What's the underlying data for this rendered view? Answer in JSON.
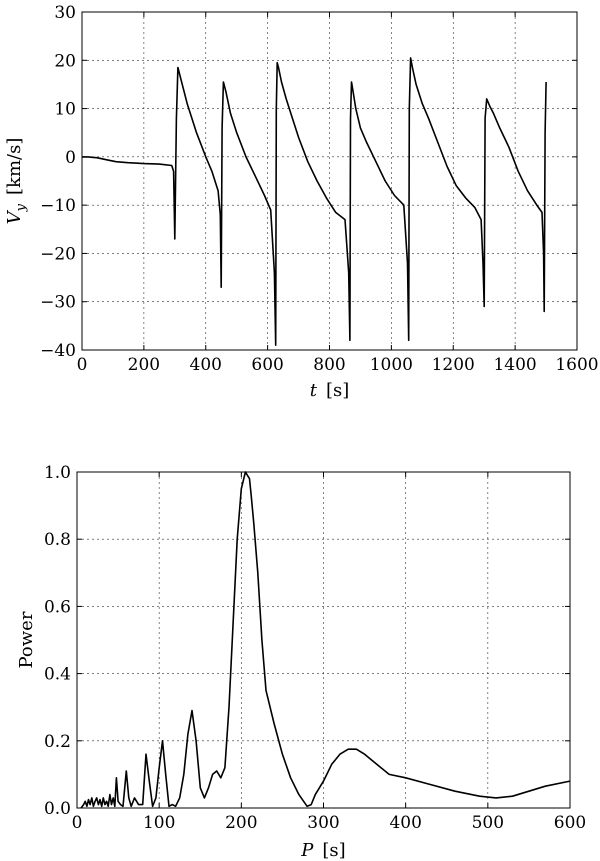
{
  "chart_data": [
    {
      "type": "line",
      "xlabel": "t  [s]",
      "ylabel": "V_y  [km/s]",
      "xlim": [
        0,
        1600
      ],
      "ylim": [
        -40,
        30
      ],
      "xticks": [
        0,
        200,
        400,
        600,
        800,
        1000,
        1200,
        1400,
        1600
      ],
      "yticks": [
        -40,
        -30,
        -20,
        -10,
        0,
        10,
        20,
        30
      ],
      "xtick_labels": [
        "0",
        "200",
        "400",
        "600",
        "800",
        "1000",
        "1200",
        "1400",
        "1600"
      ],
      "ytick_labels": [
        "−40",
        "−30",
        "−20",
        "−10",
        "0",
        "10",
        "20",
        "30"
      ],
      "grid": true,
      "series": [
        {
          "x": [
            0,
            20,
            50,
            80,
            110,
            150,
            200,
            250,
            290,
            296,
            300,
            305,
            310,
            320,
            340,
            370,
            400,
            420,
            440,
            447,
            450,
            453,
            457,
            465,
            480,
            500,
            530,
            560,
            590,
            610,
            622,
            626,
            628,
            631,
            635,
            645,
            660,
            680,
            700,
            730,
            760,
            790,
            820,
            850,
            862,
            866,
            868,
            871,
            875,
            885,
            900,
            920,
            950,
            980,
            1010,
            1040,
            1052,
            1056,
            1058,
            1062,
            1068,
            1080,
            1100,
            1120,
            1150,
            1180,
            1210,
            1240,
            1270,
            1290,
            1296,
            1300,
            1303,
            1308,
            1318,
            1330,
            1350,
            1380,
            1410,
            1440,
            1470,
            1487,
            1492,
            1494,
            1497,
            1500
          ],
          "y": [
            0,
            0,
            -0.2,
            -0.6,
            -1.0,
            -1.2,
            -1.4,
            -1.5,
            -1.8,
            -3,
            -17,
            8,
            18.5,
            16,
            11,
            5,
            0,
            -3,
            -7,
            -12,
            -27,
            6,
            15.5,
            13.5,
            9,
            5,
            0,
            -4,
            -8,
            -11,
            -24,
            -39,
            10,
            19.5,
            18.5,
            15.5,
            12,
            8,
            4,
            -1,
            -5,
            -8.5,
            -11.5,
            -13,
            -24,
            -38,
            8,
            15.5,
            14,
            10,
            6,
            3,
            -1,
            -5,
            -8,
            -10,
            -22,
            -38,
            10,
            20.5,
            18.5,
            15,
            11,
            8,
            3,
            -2,
            -6,
            -8.5,
            -10.5,
            -13,
            -22,
            -31,
            8,
            12,
            10.5,
            9,
            6,
            2,
            -3,
            -7,
            -10,
            -11.5,
            -20,
            -32,
            5,
            15.5
          ]
        }
      ]
    },
    {
      "type": "line",
      "xlabel": "P  [s]",
      "ylabel": "Power",
      "xlim": [
        0,
        600
      ],
      "ylim": [
        0,
        1.0
      ],
      "xticks": [
        0,
        100,
        200,
        300,
        400,
        500,
        600
      ],
      "yticks": [
        0.0,
        0.2,
        0.4,
        0.6,
        0.8,
        1.0
      ],
      "xtick_labels": [
        "0",
        "100",
        "200",
        "300",
        "400",
        "500",
        "600"
      ],
      "ytick_labels": [
        "0.0",
        "0.2",
        "0.4",
        "0.6",
        "0.8",
        "1.0"
      ],
      "grid": true,
      "series": [
        {
          "x": [
            5,
            8,
            10,
            12,
            14,
            16,
            18,
            20,
            22,
            24,
            26,
            28,
            30,
            32,
            34,
            36,
            38,
            40,
            42,
            44,
            46,
            48,
            50,
            53,
            56,
            60,
            63,
            66,
            70,
            75,
            80,
            84,
            88,
            92,
            96,
            100,
            104,
            108,
            112,
            116,
            120,
            125,
            130,
            135,
            140,
            145,
            150,
            155,
            160,
            165,
            170,
            175,
            180,
            185,
            190,
            195,
            200,
            205,
            210,
            212,
            215,
            220,
            225,
            230,
            240,
            250,
            260,
            270,
            280,
            285,
            290,
            300,
            310,
            320,
            330,
            340,
            350,
            360,
            370,
            380,
            400,
            430,
            460,
            490,
            510,
            530,
            550,
            570,
            600
          ],
          "y": [
            0,
            0.01,
            0.02,
            0.005,
            0.025,
            0.01,
            0.03,
            0.005,
            0.02,
            0.03,
            0.01,
            0.025,
            0.005,
            0.03,
            0.01,
            0.02,
            0.005,
            0.04,
            0.01,
            0.03,
            0.005,
            0.09,
            0.02,
            0.01,
            0.005,
            0.11,
            0.03,
            0.005,
            0.03,
            0.01,
            0.01,
            0.16,
            0.08,
            0.005,
            0.03,
            0.12,
            0.2,
            0.1,
            0.005,
            0.01,
            0.005,
            0.03,
            0.1,
            0.22,
            0.29,
            0.2,
            0.06,
            0.03,
            0.06,
            0.1,
            0.11,
            0.09,
            0.12,
            0.3,
            0.55,
            0.8,
            0.95,
            1.0,
            0.98,
            0.93,
            0.85,
            0.7,
            0.5,
            0.35,
            0.25,
            0.16,
            0.09,
            0.04,
            0.005,
            0.01,
            0.04,
            0.08,
            0.13,
            0.16,
            0.175,
            0.175,
            0.16,
            0.14,
            0.12,
            0.1,
            0.09,
            0.07,
            0.05,
            0.035,
            0.03,
            0.035,
            0.05,
            0.065,
            0.08
          ]
        }
      ]
    }
  ]
}
